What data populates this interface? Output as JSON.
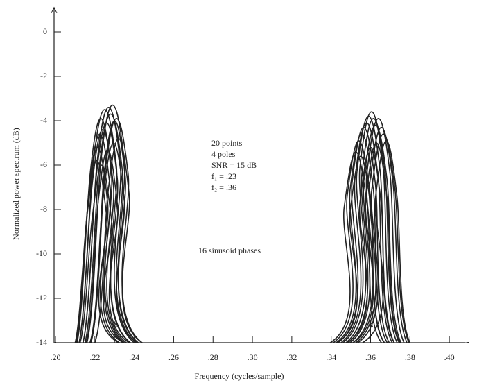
{
  "chart_data": {
    "type": "line",
    "xlabel": "Frequency (cycles/sample)",
    "ylabel": "Normalized power spectrum (dB)",
    "annotations": [
      "20 points",
      "4 poles",
      "SNR = 15 dB",
      "f₁ = .23",
      "f₂ = .36"
    ],
    "note": "16 sinusoid phases",
    "markers": [
      0.23,
      0.36
    ],
    "xlim": [
      0.2,
      0.4077
    ],
    "ylim": [
      -14,
      1.1
    ],
    "xticks": [
      {
        "value": 0.2,
        "label": ".20"
      },
      {
        "value": 0.22,
        "label": ".22"
      },
      {
        "value": 0.24,
        "label": ".24"
      },
      {
        "value": 0.26,
        "label": ".26"
      },
      {
        "value": 0.28,
        "label": ".28"
      },
      {
        "value": 0.3,
        "label": ".30"
      },
      {
        "value": 0.32,
        "label": ".32"
      },
      {
        "value": 0.34,
        "label": ".34"
      },
      {
        "value": 0.36,
        "label": ".36"
      },
      {
        "value": 0.38,
        "label": ".38"
      },
      {
        "value": 0.4,
        "label": ".40"
      }
    ],
    "yticks": [
      0,
      -2,
      -4,
      -6,
      -8,
      -10,
      -12,
      -14
    ],
    "color": "#222",
    "series": [
      {
        "x": [
          0.2,
          0.2105,
          0.2165,
          0.2215,
          0.2265,
          0.2325,
          0.3395,
          0.3466,
          0.3525,
          0.3584,
          0.3655,
          0.41
        ],
        "values": [
          -14,
          -14,
          -7.7,
          -5.2,
          -7.7,
          -14,
          -14,
          -7.9,
          -5.4,
          -7.9,
          -14,
          -14
        ]
      },
      {
        "x": [
          0.2,
          0.2105,
          0.2171,
          0.2225,
          0.2279,
          0.2345,
          0.341,
          0.3481,
          0.354,
          0.3599,
          0.367,
          0.41
        ],
        "values": [
          -14,
          -14,
          -7.1,
          -4.6,
          -7.1,
          -14,
          -14,
          -7.4,
          -4.9,
          -7.4,
          -14,
          -14
        ]
      },
      {
        "x": [
          0.2,
          0.211,
          0.2176,
          0.223,
          0.2284,
          0.235,
          0.3425,
          0.3496,
          0.3555,
          0.3614,
          0.3685,
          0.41
        ],
        "values": [
          -14,
          -14,
          -6.4,
          -3.9,
          -6.4,
          -14,
          -14,
          -7.1,
          -4.6,
          -7.1,
          -14,
          -14
        ]
      },
      {
        "x": [
          0.2,
          0.212,
          0.2186,
          0.224,
          0.2294,
          0.236,
          0.3435,
          0.3506,
          0.3565,
          0.3624,
          0.3695,
          0.41
        ],
        "values": [
          -14,
          -14,
          -6.9,
          -4.4,
          -6.9,
          -14,
          -14,
          -6.8,
          -4.3,
          -6.8,
          -14,
          -14
        ]
      },
      {
        "x": [
          0.2,
          0.212,
          0.2191,
          0.225,
          0.2309,
          0.238,
          0.345,
          0.3521,
          0.358,
          0.3639,
          0.371,
          0.41
        ],
        "values": [
          -14,
          -14,
          -6.0,
          -3.5,
          -6.0,
          -14,
          -14,
          -6.6,
          -4.1,
          -6.6,
          -14,
          -14
        ]
      },
      {
        "x": [
          0.2,
          0.214,
          0.2206,
          0.226,
          0.2314,
          0.238,
          0.346,
          0.3531,
          0.359,
          0.3649,
          0.372,
          0.41
        ],
        "values": [
          -14,
          -14,
          -6.6,
          -4.1,
          -6.6,
          -14,
          -14,
          -6.3,
          -3.8,
          -6.3,
          -14,
          -14
        ]
      },
      {
        "x": [
          0.2,
          0.214,
          0.2211,
          0.227,
          0.2329,
          0.24,
          0.3475,
          0.3546,
          0.3605,
          0.3664,
          0.3735,
          0.41
        ],
        "values": [
          -14,
          -14,
          -5.9,
          -3.4,
          -5.9,
          -14,
          -14,
          -6.1,
          -3.6,
          -6.1,
          -14,
          -14
        ]
      },
      {
        "x": [
          0.2,
          0.215,
          0.2221,
          0.228,
          0.2339,
          0.241,
          0.3485,
          0.3556,
          0.3615,
          0.3674,
          0.3745,
          0.41
        ],
        "values": [
          -14,
          -14,
          -6.2,
          -3.7,
          -6.2,
          -14,
          -14,
          -6.4,
          -3.9,
          -6.4,
          -14,
          -14
        ]
      },
      {
        "x": [
          0.2,
          0.216,
          0.2231,
          0.229,
          0.2349,
          0.242,
          0.3495,
          0.3566,
          0.3625,
          0.3684,
          0.3755,
          0.41
        ],
        "values": [
          -14,
          -14,
          -5.8,
          -3.3,
          -5.8,
          -14,
          -14,
          -6.7,
          -4.2,
          -6.7,
          -14,
          -14
        ]
      },
      {
        "x": [
          0.2,
          0.218,
          0.2246,
          0.23,
          0.2354,
          0.242,
          0.351,
          0.3581,
          0.364,
          0.3699,
          0.377,
          0.41
        ],
        "values": [
          -14,
          -14,
          -6.5,
          -4.0,
          -6.5,
          -14,
          -14,
          -6.4,
          -3.9,
          -6.4,
          -14,
          -14
        ]
      },
      {
        "x": [
          0.2,
          0.218,
          0.2251,
          0.231,
          0.2369,
          0.244,
          0.3525,
          0.3596,
          0.3655,
          0.3714,
          0.3785,
          0.41
        ],
        "values": [
          -14,
          -14,
          -6.4,
          -3.9,
          -6.4,
          -14,
          -14,
          -6.8,
          -4.3,
          -6.8,
          -14,
          -14
        ]
      },
      {
        "x": [
          0.2,
          0.22,
          0.2266,
          0.232,
          0.2374,
          0.244,
          0.3535,
          0.3606,
          0.3665,
          0.3724,
          0.3795,
          0.41
        ],
        "values": [
          -14,
          -14,
          -7.3,
          -4.8,
          -7.3,
          -14,
          -14,
          -7.1,
          -4.6,
          -7.1,
          -14,
          -14
        ]
      },
      {
        "x": [
          0.2,
          0.21,
          0.216,
          0.221,
          0.226,
          0.232,
          0.343,
          0.3496,
          0.355,
          0.3604,
          0.367,
          0.41
        ],
        "values": [
          -14,
          -14,
          -8.3,
          -5.8,
          -8.3,
          -14,
          -14,
          -8.1,
          -5.6,
          -8.1,
          -14,
          -14
        ]
      },
      {
        "x": [
          0.2,
          0.2125,
          0.2185,
          0.2235,
          0.2285,
          0.2345,
          0.348,
          0.3546,
          0.36,
          0.3654,
          0.372,
          0.41
        ],
        "values": [
          -14,
          -14,
          -8.5,
          -6.0,
          -8.5,
          -14,
          -14,
          -7.7,
          -5.2,
          -7.7,
          -14,
          -14
        ]
      },
      {
        "x": [
          0.2,
          0.2155,
          0.2215,
          0.2265,
          0.2315,
          0.2375,
          0.351,
          0.3576,
          0.363,
          0.3684,
          0.375,
          0.41
        ],
        "values": [
          -14,
          -14,
          -7.8,
          -5.3,
          -7.8,
          -14,
          -14,
          -7.5,
          -5.0,
          -7.5,
          -14,
          -14
        ]
      },
      {
        "x": [
          0.2,
          0.2175,
          0.2241,
          0.2295,
          0.2349,
          0.2415,
          0.356,
          0.3626,
          0.368,
          0.3734,
          0.38,
          0.41
        ],
        "values": [
          -14,
          -14,
          -7.5,
          -5.0,
          -7.5,
          -14,
          -14,
          -7.4,
          -4.9,
          -7.4,
          -14,
          -14
        ]
      }
    ]
  }
}
